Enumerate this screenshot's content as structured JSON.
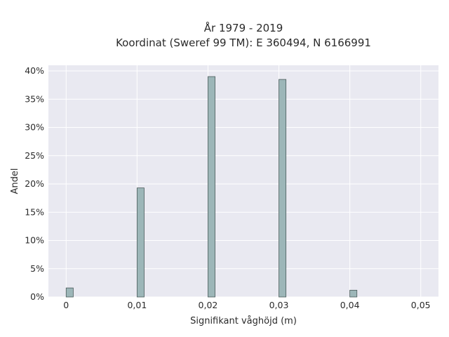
{
  "chart_data": {
    "type": "bar",
    "title_line1": "År 1979 - 2019",
    "title_line2": "Koordinat (Sweref 99 TM): E 360494, N 6166991",
    "xlabel": "Signifikant våghöjd (m)",
    "ylabel": "Andel",
    "x_ticks": [
      {
        "value": 0,
        "label": "0"
      },
      {
        "value": 0.01,
        "label": "0,01"
      },
      {
        "value": 0.02,
        "label": "0,02"
      },
      {
        "value": 0.03,
        "label": "0,03"
      },
      {
        "value": 0.04,
        "label": "0,04"
      },
      {
        "value": 0.05,
        "label": "0,05"
      }
    ],
    "y_ticks": [
      {
        "value": 0,
        "label": "0%"
      },
      {
        "value": 5,
        "label": "5%"
      },
      {
        "value": 10,
        "label": "10%"
      },
      {
        "value": 15,
        "label": "15%"
      },
      {
        "value": 20,
        "label": "20%"
      },
      {
        "value": 25,
        "label": "25%"
      },
      {
        "value": 30,
        "label": "30%"
      },
      {
        "value": 35,
        "label": "35%"
      },
      {
        "value": 40,
        "label": "40%"
      }
    ],
    "xlim": [
      -0.0025,
      0.0525
    ],
    "ylim": [
      0,
      41
    ],
    "bin_width": 0.001,
    "bars": [
      {
        "x": 0.0005,
        "y": 1.6
      },
      {
        "x": 0.0105,
        "y": 19.3
      },
      {
        "x": 0.0205,
        "y": 39.0
      },
      {
        "x": 0.0305,
        "y": 38.5
      },
      {
        "x": 0.0405,
        "y": 1.2
      }
    ],
    "grid": true,
    "colors": {
      "plot_background": "#e9e9f1",
      "grid": "#ffffff",
      "bar_fill": "#9cb6b8",
      "bar_stroke": "#4a5a5a"
    }
  }
}
